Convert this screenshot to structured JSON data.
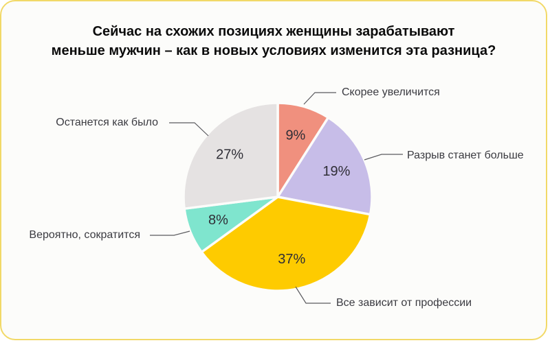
{
  "card": {
    "title_line1": "Сейчас на схожих позициях женщины зарабатывают",
    "title_line2": "меньше мужчин – как в новых условиях изменится эта разница?"
  },
  "chart_data": {
    "type": "pie",
    "title": "Сейчас на схожих позициях женщины зарабатывают меньше мужчин – как в новых условиях изменится эта разница?",
    "unit": "%",
    "start_angle_deg": 0,
    "direction": "clockwise",
    "value_label_format": "{value}%",
    "legend_position": "callout-labels",
    "slices": [
      {
        "label": "Скорее увеличится",
        "value": 9,
        "color": "#F0907E"
      },
      {
        "label": "Разрыв станет больше",
        "value": 19,
        "color": "#C7BDE8"
      },
      {
        "label": "Все зависит от профессии",
        "value": 37,
        "color": "#FECB00"
      },
      {
        "label": "Вероятно, сократится",
        "value": 8,
        "color": "#7FE5CE"
      },
      {
        "label": "Останется как было",
        "value": 27,
        "color": "#E5E2E2"
      }
    ],
    "colors": {
      "card_border": "#F2D967",
      "card_background": "#FCFCFA",
      "value_label_text": "#2F2E36",
      "callout_text": "#3A3A40",
      "title_text": "#0B0B0B",
      "leader_line": "#5A5A5E"
    }
  }
}
